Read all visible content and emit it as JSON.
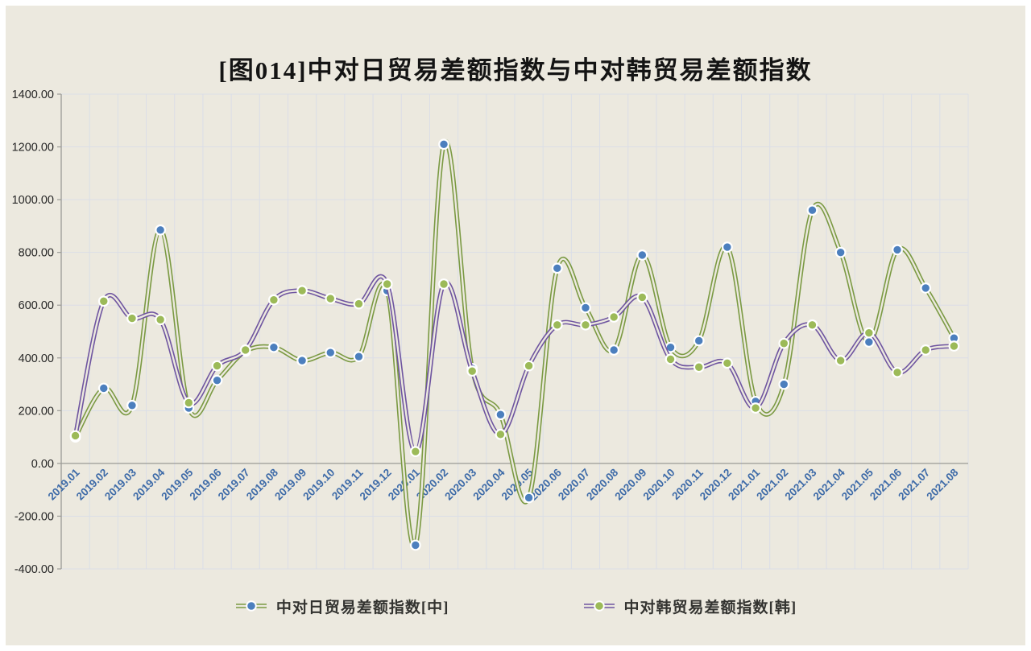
{
  "title": "[图014]中对日贸易差额指数与中对韩贸易差额指数",
  "colors": {
    "background": "#ECE9DF",
    "frame_border": "#FFFFFF",
    "gridline": "#DBDEE7",
    "axis_line": "#9B9B96",
    "x_label_text": "#3E6BA8",
    "y_label_text": "#262626",
    "title_text": "#141414",
    "legend_text": "#333330"
  },
  "chart_data": {
    "type": "line",
    "title": "[图014]中对日贸易差额指数与中对韩贸易差额指数",
    "xlabel": "",
    "ylabel": "",
    "ylim": [
      -400,
      1400
    ],
    "ytick_step": 200,
    "ytick_labels": [
      "1400.00",
      "1200.00",
      "1000.00",
      "800.00",
      "600.00",
      "400.00",
      "200.00",
      "0.00",
      "-200.00",
      "-400.00"
    ],
    "grid": true,
    "smooth": true,
    "line_style": "double",
    "legend_position": "bottom",
    "categories": [
      "2019.01",
      "2019.02",
      "2019.03",
      "2019.04",
      "2019.05",
      "2019.06",
      "2019.07",
      "2019.08",
      "2019.09",
      "2019.10",
      "2019.11",
      "2019.12",
      "2020.01",
      "2020.02",
      "2020.03",
      "2020.04",
      "2020.05",
      "2020.06",
      "2020.07",
      "2020.08",
      "2020.09",
      "2020.10",
      "2020.11",
      "2020.12",
      "2021.01",
      "2021.02",
      "2021.03",
      "2021.04",
      "2021.05",
      "2021.06",
      "2021.07",
      "2021.08"
    ],
    "series": [
      {
        "name": "中对日贸易差额指数[中]",
        "line_color": "#7B9A43",
        "marker_color": "#4C7FBE",
        "values": [
          100,
          285,
          220,
          885,
          210,
          315,
          425,
          440,
          390,
          420,
          405,
          655,
          -310,
          1210,
          360,
          185,
          -130,
          740,
          590,
          430,
          790,
          440,
          465,
          820,
          235,
          300,
          960,
          800,
          460,
          810,
          665,
          475
        ]
      },
      {
        "name": "中对韩贸易差额指数[韩]",
        "line_color": "#6F55A0",
        "marker_color": "#9CBA58",
        "values": [
          105,
          615,
          550,
          545,
          230,
          370,
          430,
          620,
          655,
          625,
          605,
          680,
          45,
          680,
          350,
          110,
          370,
          525,
          525,
          555,
          630,
          395,
          365,
          380,
          210,
          455,
          525,
          390,
          495,
          345,
          430,
          445
        ]
      }
    ]
  }
}
